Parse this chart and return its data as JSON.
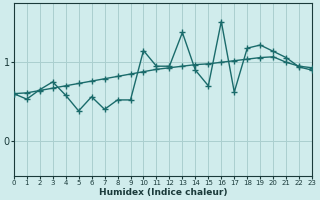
{
  "xlabel": "Humidex (Indice chaleur)",
  "bg_color": "#d0ecec",
  "line_color": "#1a6b6b",
  "grid_color": "#aacfcf",
  "x_ticks": [
    0,
    1,
    2,
    3,
    4,
    5,
    6,
    7,
    8,
    9,
    10,
    11,
    12,
    13,
    14,
    15,
    16,
    17,
    18,
    19,
    20,
    21,
    22,
    23
  ],
  "y_ticks": [
    0,
    1
  ],
  "xlim": [
    0,
    23
  ],
  "ylim": [
    -0.45,
    1.75
  ],
  "smooth_x": [
    0,
    1,
    2,
    3,
    4,
    5,
    6,
    7,
    8,
    9,
    10,
    11,
    12,
    13,
    14,
    15,
    16,
    17,
    18,
    19,
    20,
    21,
    22,
    23
  ],
  "smooth_y": [
    0.6,
    0.61,
    0.64,
    0.67,
    0.7,
    0.73,
    0.76,
    0.79,
    0.82,
    0.85,
    0.88,
    0.91,
    0.93,
    0.95,
    0.97,
    0.98,
    1.0,
    1.02,
    1.04,
    1.06,
    1.07,
    1.0,
    0.95,
    0.93
  ],
  "volatile_x": [
    0,
    1,
    2,
    3,
    4,
    5,
    6,
    7,
    8,
    9,
    10,
    11,
    12,
    13,
    14,
    15,
    16,
    17,
    18,
    19,
    20,
    21,
    22,
    23
  ],
  "volatile_y": [
    0.6,
    0.53,
    0.65,
    0.75,
    0.58,
    0.38,
    0.56,
    0.4,
    0.52,
    0.52,
    1.15,
    0.95,
    0.95,
    1.38,
    0.9,
    0.7,
    1.52,
    0.62,
    1.18,
    1.22,
    1.14,
    1.06,
    0.94,
    0.9
  ],
  "marker_size": 4,
  "linewidth": 1.0
}
